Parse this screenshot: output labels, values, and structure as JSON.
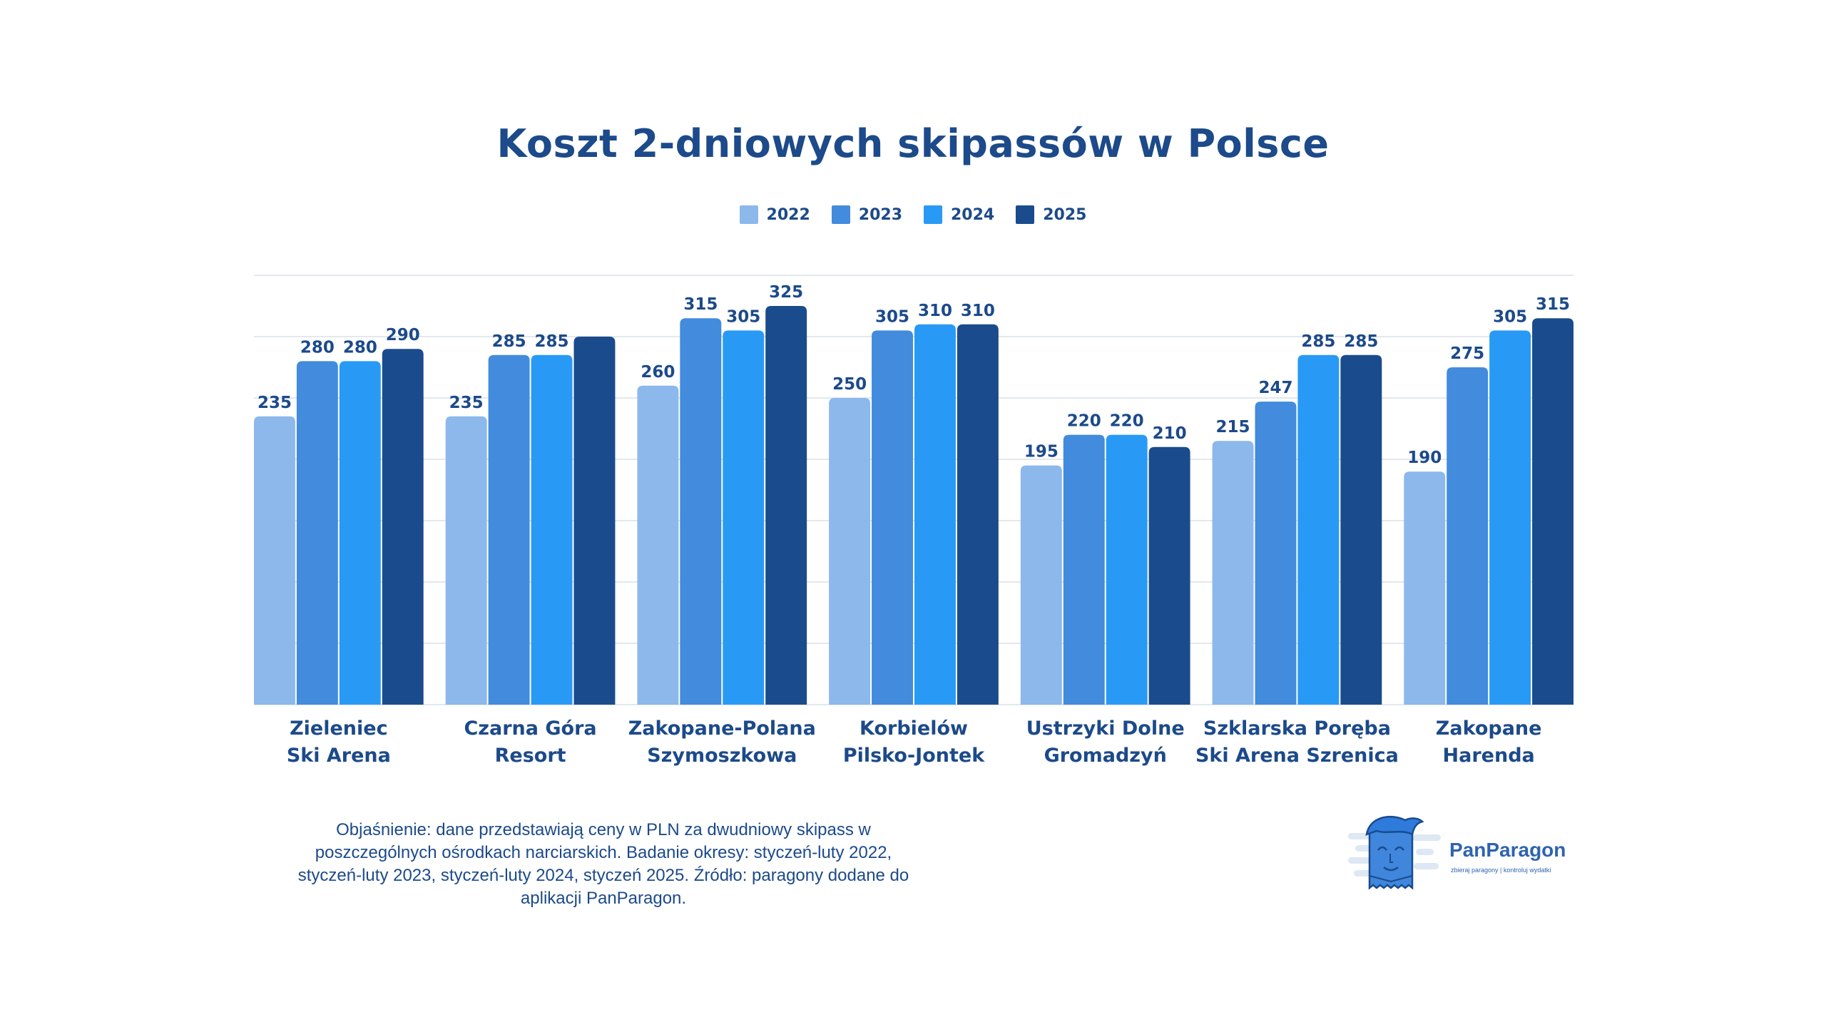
{
  "chart_data": {
    "type": "bar",
    "title": "Koszt 2-dniowych skipassów w Polsce",
    "categories": [
      [
        "Zieleniec",
        "Ski Arena"
      ],
      [
        "Czarna Góra",
        "Resort"
      ],
      [
        "Zakopane-Polana",
        "Szymoszkowa"
      ],
      [
        "Korbielów",
        "Pilsko-Jontek"
      ],
      [
        "Ustrzyki  Dolne",
        "Gromadzyń"
      ],
      [
        "Szklarska Poręba",
        "Ski Arena Szrenica"
      ],
      [
        "Zakopane",
        "Harenda"
      ]
    ],
    "series": [
      {
        "name": "2022",
        "color": "#8cb8ec",
        "values": [
          235,
          235,
          260,
          250,
          195,
          215,
          190
        ],
        "labels": [
          "235",
          "235",
          "260",
          "250",
          "195",
          "215",
          "190"
        ]
      },
      {
        "name": "2023",
        "color": "#428bdd",
        "values": [
          280,
          285,
          315,
          305,
          220,
          247,
          275
        ],
        "labels": [
          "280",
          "285",
          "315",
          "305",
          "220",
          "247",
          "275"
        ]
      },
      {
        "name": "2024",
        "color": "#289af6",
        "values": [
          280,
          285,
          305,
          310,
          220,
          285,
          305
        ],
        "labels": [
          "280",
          "285",
          "305",
          "310",
          "220",
          "285",
          "305"
        ]
      },
      {
        "name": "2025",
        "color": "#1a4b8c",
        "values": [
          290,
          300,
          325,
          310,
          210,
          285,
          315
        ],
        "labels": [
          "290",
          null,
          "325",
          "310",
          "210",
          "285",
          "315"
        ]
      }
    ],
    "xlabel": "",
    "ylabel": "",
    "ylim": [
      0,
      350
    ],
    "grid": true,
    "y_tick_step": 50,
    "y_tick_labels_shown": false,
    "legend_placement": "top-center"
  },
  "footnote": [
    "Objaśnienie: dane przedstawiają ceny w PLN za dwudniowy skipass w",
    "poszczególnych ośrodkach narciarskich. Badanie okresy: styczeń-luty 2022,",
    "styczeń-luty 2023, styczeń-luty 2024, styczeń 2025. Źródło: paragony dodane do",
    "aplikacji PanParagon."
  ],
  "logo": {
    "name": "PanParagon",
    "tagline": "zbieraj paragony | kontroluj wydatki"
  },
  "colors": {
    "text": "#1c4a8a",
    "grid": "#e3e7ee"
  }
}
